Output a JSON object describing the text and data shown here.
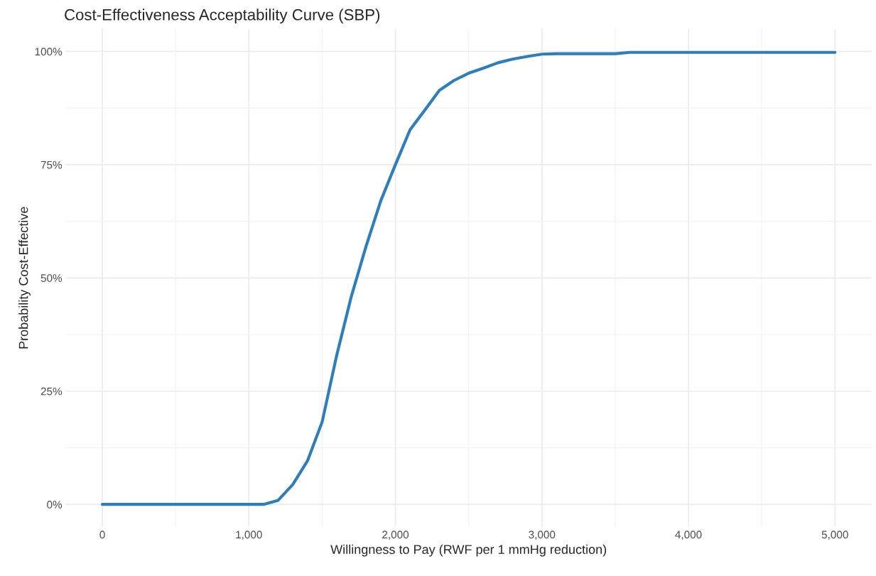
{
  "chart_data": {
    "type": "line",
    "title": "Cost-Effectiveness Acceptability Curve (SBP)",
    "xlabel": "Willingness to Pay (RWF per 1 mmHg reduction)",
    "ylabel": "Probability Cost-Effective",
    "x": [
      0,
      1100,
      1200,
      1300,
      1400,
      1500,
      1600,
      1700,
      1800,
      1900,
      2000,
      2100,
      2200,
      2300,
      2400,
      2500,
      2600,
      2700,
      2800,
      2900,
      3000,
      3100,
      3500,
      3600,
      5000
    ],
    "series": [
      {
        "color": "#2e7ebc",
        "values": [
          0,
          0,
          0.9,
          4.4,
          9.6,
          18.2,
          33,
          46,
          57,
          67,
          75,
          82.7,
          87,
          91.4,
          93.6,
          95.2,
          96.3,
          97.5,
          98.3,
          98.9,
          99.4,
          99.5,
          99.5,
          99.8,
          99.8
        ]
      }
    ],
    "xlim": [
      -250,
      5250
    ],
    "ylim": [
      -5,
      105
    ],
    "xticks": [
      {
        "value": 0,
        "label": "0"
      },
      {
        "value": 1000,
        "label": "1,000"
      },
      {
        "value": 2000,
        "label": "2,000"
      },
      {
        "value": 3000,
        "label": "3,000"
      },
      {
        "value": 4000,
        "label": "4,000"
      },
      {
        "value": 5000,
        "label": "5,000"
      }
    ],
    "yticks": [
      {
        "value": 0,
        "label": "0%"
      },
      {
        "value": 25,
        "label": "25%"
      },
      {
        "value": 50,
        "label": "50%"
      },
      {
        "value": 75,
        "label": "75%"
      },
      {
        "value": 100,
        "label": "100%"
      }
    ],
    "grid": true,
    "line_style": "solid"
  }
}
